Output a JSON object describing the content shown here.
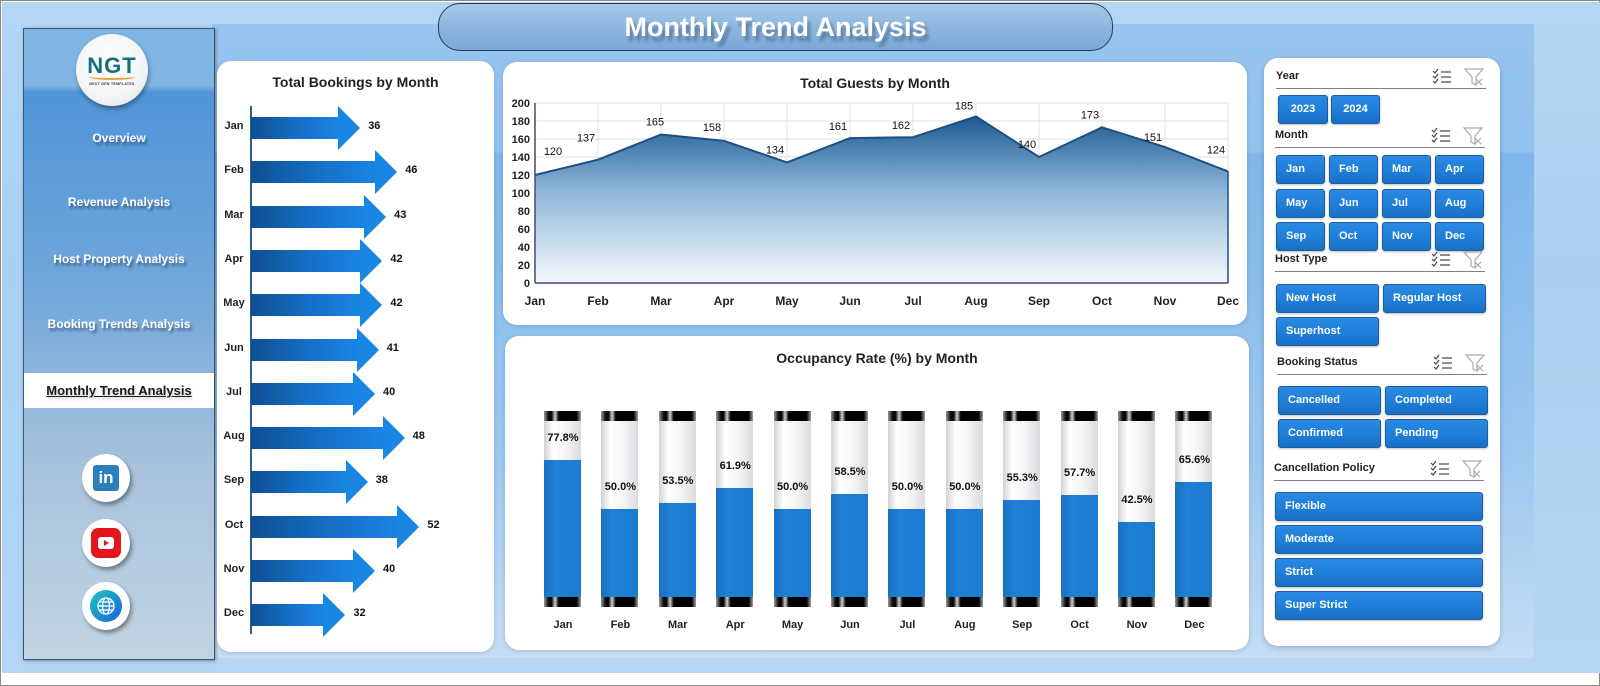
{
  "header": {
    "title": "Monthly Trend Analysis"
  },
  "logo": {
    "text": "NGT",
    "subtitle": "NEXT GEN TEMPLATES"
  },
  "sidebar": {
    "items": [
      {
        "label": "Overview",
        "active": false
      },
      {
        "label": "Revenue Analysis",
        "active": false
      },
      {
        "label": "Host Property Analysis",
        "active": false
      },
      {
        "label": "Booking Trends Analysis",
        "active": false
      },
      {
        "label": "Monthly Trend Analysis",
        "active": true
      }
    ],
    "social": [
      {
        "name": "linkedin",
        "glyph": "in"
      },
      {
        "name": "youtube"
      },
      {
        "name": "website"
      }
    ]
  },
  "bookings": {
    "title": "Total Bookings by Month",
    "months": [
      "Jan",
      "Feb",
      "Mar",
      "Apr",
      "May",
      "Jun",
      "Jul",
      "Aug",
      "Sep",
      "Oct",
      "Nov",
      "Dec"
    ],
    "values": [
      "36",
      "46",
      "43",
      "42",
      "42",
      "41",
      "40",
      "48",
      "38",
      "52",
      "40",
      "32"
    ]
  },
  "guests": {
    "title": "Total Guests by Month",
    "yticks": [
      "200",
      "180",
      "160",
      "140",
      "120",
      "100",
      "80",
      "60",
      "40",
      "20",
      "0"
    ],
    "months": [
      "Jan",
      "Feb",
      "Mar",
      "Apr",
      "May",
      "Jun",
      "Jul",
      "Aug",
      "Sep",
      "Oct",
      "Nov",
      "Dec"
    ],
    "values": [
      "120",
      "137",
      "165",
      "158",
      "134",
      "161",
      "162",
      "185",
      "140",
      "173",
      "151",
      "124"
    ]
  },
  "occupancy": {
    "title": "Occupancy Rate (%) by Month",
    "months": [
      "Jan",
      "Feb",
      "Mar",
      "Apr",
      "May",
      "Jun",
      "Jul",
      "Aug",
      "Sep",
      "Oct",
      "Nov",
      "Dec"
    ],
    "values": [
      "77.8%",
      "50.0%",
      "53.5%",
      "61.9%",
      "50.0%",
      "58.5%",
      "50.0%",
      "50.0%",
      "55.3%",
      "57.7%",
      "42.5%",
      "65.6%"
    ]
  },
  "slicers": {
    "year": {
      "label": "Year",
      "options": [
        "2023",
        "2024"
      ]
    },
    "month": {
      "label": "Month",
      "options": [
        "Jan",
        "Feb",
        "Mar",
        "Apr",
        "May",
        "Jun",
        "Jul",
        "Aug",
        "Sep",
        "Oct",
        "Nov",
        "Dec"
      ]
    },
    "host_type": {
      "label": "Host Type",
      "options": [
        "New Host",
        "Regular Host",
        "Superhost"
      ]
    },
    "booking_status": {
      "label": "Booking Status",
      "options": [
        "Cancelled",
        "Completed",
        "Confirmed",
        "Pending"
      ]
    },
    "cancellation_policy": {
      "label": "Cancellation Policy",
      "options": [
        "Flexible",
        "Moderate",
        "Strict",
        "Super Strict"
      ]
    }
  },
  "colors": {
    "accent": "#1f7fd9",
    "dark_blue": "#0f4f92",
    "area_top": "#1b5a93",
    "background": "#b4d6f4"
  },
  "chart_data": [
    {
      "type": "bar",
      "orientation": "horizontal",
      "title": "Total Bookings by Month",
      "categories": [
        "Jan",
        "Feb",
        "Mar",
        "Apr",
        "May",
        "Jun",
        "Jul",
        "Aug",
        "Sep",
        "Oct",
        "Nov",
        "Dec"
      ],
      "values": [
        36,
        46,
        43,
        42,
        42,
        41,
        40,
        48,
        38,
        52,
        40,
        32
      ],
      "xlabel": "",
      "ylabel": ""
    },
    {
      "type": "area",
      "title": "Total Guests by Month",
      "categories": [
        "Jan",
        "Feb",
        "Mar",
        "Apr",
        "May",
        "Jun",
        "Jul",
        "Aug",
        "Sep",
        "Oct",
        "Nov",
        "Dec"
      ],
      "values": [
        120,
        137,
        165,
        158,
        134,
        161,
        162,
        185,
        140,
        173,
        151,
        124
      ],
      "ylim": [
        0,
        200
      ],
      "yticks": [
        0,
        20,
        40,
        60,
        80,
        100,
        120,
        140,
        160,
        180,
        200
      ],
      "grid": true
    },
    {
      "type": "bar",
      "title": "Occupancy Rate (%) by Month",
      "categories": [
        "Jan",
        "Feb",
        "Mar",
        "Apr",
        "May",
        "Jun",
        "Jul",
        "Aug",
        "Sep",
        "Oct",
        "Nov",
        "Dec"
      ],
      "values": [
        77.8,
        50.0,
        53.5,
        61.9,
        50.0,
        58.5,
        50.0,
        50.0,
        55.3,
        57.7,
        42.5,
        65.6
      ],
      "ylim": [
        0,
        100
      ],
      "unit": "%"
    }
  ]
}
